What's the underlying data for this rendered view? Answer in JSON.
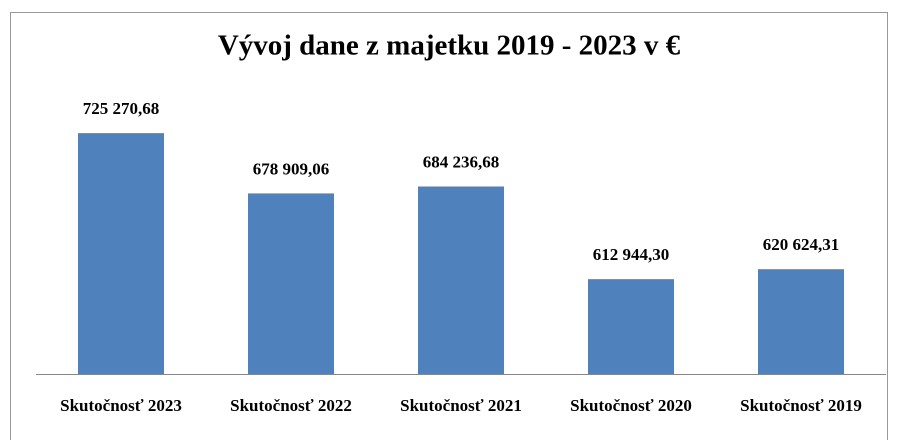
{
  "chart_data": {
    "type": "bar",
    "title": "Vývoj dane z majetku 2019 - 2023 v €",
    "categories": [
      "Skutočnosť 2023",
      "Skutočnosť 2022",
      "Skutočnosť 2021",
      "Skutočnosť 2020",
      "Skutočnosť 2019"
    ],
    "values": [
      725270.68,
      678909.06,
      684236.68,
      612944.3,
      620624.31
    ],
    "value_labels": [
      "725 270,68",
      "678 909,06",
      "684 236,68",
      "612 944,30",
      "620 624,31"
    ],
    "color": "#4f81bd",
    "ylim": [
      540000,
      760000
    ]
  }
}
